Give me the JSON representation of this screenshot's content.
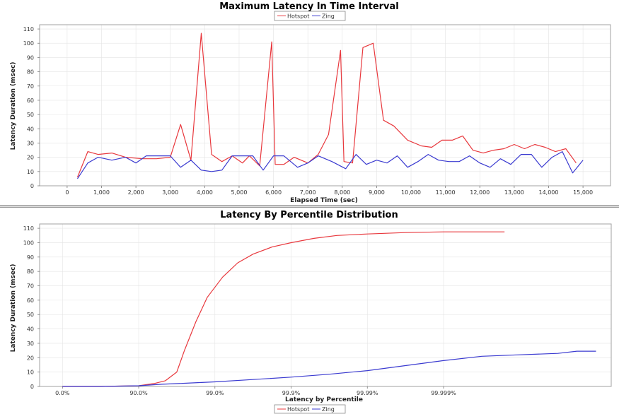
{
  "colors": {
    "hotspot": "#e8383d",
    "zing": "#3a3ad0",
    "grid": "#e4e4e4",
    "plot_border": "#a0a0a0"
  },
  "chart_data": [
    {
      "type": "line",
      "title": "Maximum Latency In Time Interval",
      "xlabel": "Elapsed Time (sec)",
      "ylabel": "Latency Duration (msec)",
      "xlim": [
        -800,
        15800
      ],
      "ylim": [
        0,
        113
      ],
      "x_ticks": [
        0,
        1000,
        2000,
        3000,
        4000,
        5000,
        6000,
        7000,
        8000,
        9000,
        10000,
        11000,
        12000,
        13000,
        14000,
        15000
      ],
      "x_tick_labels": [
        "0",
        "1,000",
        "2,000",
        "3,000",
        "4,000",
        "5,000",
        "6,000",
        "7,000",
        "8,000",
        "9,000",
        "10,000",
        "11,000",
        "12,000",
        "13,000",
        "14,000",
        "15,000"
      ],
      "y_ticks": [
        0,
        10,
        20,
        30,
        40,
        50,
        60,
        70,
        80,
        90,
        100,
        110
      ],
      "legend": "top-center",
      "grid": true,
      "series": [
        {
          "name": "Hotspot",
          "color_key": "hotspot",
          "x": [
            300,
            600,
            900,
            1300,
            1700,
            2200,
            2600,
            3000,
            3300,
            3600,
            3900,
            4200,
            4500,
            4800,
            5100,
            5300,
            5600,
            5950,
            6050,
            6300,
            6600,
            7000,
            7300,
            7600,
            7950,
            8050,
            8300,
            8600,
            8900,
            9200,
            9500,
            9900,
            10300,
            10600,
            10900,
            11200,
            11500,
            11800,
            12100,
            12400,
            12700,
            13000,
            13300,
            13600,
            13900,
            14200,
            14500,
            14800
          ],
          "y": [
            6,
            24,
            22,
            23,
            20,
            19,
            19,
            20,
            43,
            18,
            107,
            22,
            17,
            21,
            16,
            21,
            14,
            101,
            15,
            15,
            20,
            16,
            22,
            36,
            95,
            17,
            16,
            97,
            100,
            46,
            42,
            32,
            28,
            27,
            32,
            32,
            35,
            25,
            23,
            25,
            26,
            29,
            26,
            29,
            27,
            24,
            26,
            16
          ]
        },
        {
          "name": "Zing",
          "color_key": "zing",
          "x": [
            300,
            600,
            900,
            1300,
            1700,
            2000,
            2300,
            2700,
            3000,
            3300,
            3600,
            3900,
            4200,
            4500,
            4800,
            5100,
            5400,
            5700,
            6000,
            6300,
            6700,
            7000,
            7300,
            7700,
            8100,
            8400,
            8700,
            9000,
            9300,
            9600,
            9900,
            10200,
            10500,
            10800,
            11100,
            11400,
            11700,
            12000,
            12300,
            12600,
            12900,
            13200,
            13500,
            13800,
            14100,
            14400,
            14700,
            15000
          ],
          "y": [
            5,
            16,
            20,
            18,
            20,
            16,
            21,
            21,
            21,
            13,
            18,
            11,
            10,
            11,
            21,
            21,
            21,
            11,
            21,
            21,
            13,
            16,
            21,
            17,
            12,
            22,
            15,
            18,
            16,
            21,
            13,
            17,
            22,
            18,
            17,
            17,
            21,
            16,
            13,
            19,
            15,
            22,
            22,
            13,
            20,
            24,
            9,
            18
          ]
        }
      ]
    },
    {
      "type": "line",
      "title": "Latency By Percentile Distribution",
      "xlabel": "Latency by Percentile",
      "ylabel": "Latency Duration (msec)",
      "xlim": [
        -0.3,
        7.2
      ],
      "ylim": [
        0,
        113
      ],
      "x_ticks": [
        0,
        1,
        2,
        3,
        4,
        5
      ],
      "x_tick_labels": [
        "0.0%",
        "90.0%",
        "99.0%",
        "99.9%",
        "99.99%",
        "99.999%"
      ],
      "y_ticks": [
        0,
        10,
        20,
        30,
        40,
        50,
        60,
        70,
        80,
        90,
        100,
        110
      ],
      "legend": "bottom-center",
      "grid": true,
      "series": [
        {
          "name": "Hotspot",
          "color_key": "hotspot",
          "x": [
            0,
            0.5,
            1.0,
            1.2,
            1.35,
            1.5,
            1.6,
            1.75,
            1.9,
            2.1,
            2.3,
            2.5,
            2.75,
            3.0,
            3.3,
            3.6,
            4.0,
            4.5,
            5.0,
            5.5,
            5.8
          ],
          "y": [
            0,
            0,
            0.5,
            2,
            4,
            10,
            25,
            45,
            62,
            76,
            86,
            92,
            97,
            100,
            103,
            105,
            106,
            107,
            107.5,
            107.5,
            107.5
          ]
        },
        {
          "name": "Zing",
          "color_key": "zing",
          "x": [
            0,
            0.5,
            1.0,
            1.3,
            1.6,
            2.0,
            2.5,
            3.0,
            3.5,
            4.0,
            4.5,
            5.0,
            5.5,
            6.0,
            6.5,
            6.75,
            7.0
          ],
          "y": [
            0,
            0,
            0.5,
            1.5,
            2.2,
            3.2,
            4.8,
            6.5,
            8.5,
            11,
            14.5,
            18,
            21,
            22,
            23,
            24.5,
            24.5
          ]
        }
      ]
    }
  ]
}
